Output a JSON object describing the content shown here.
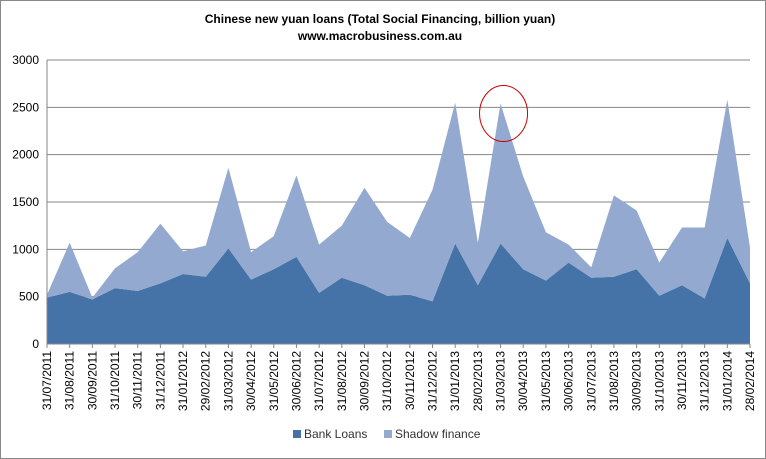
{
  "chart_data": {
    "type": "area",
    "stacked": true,
    "title": "Chinese new yuan loans (Total Social Financing, billion yuan)",
    "subtitle": "www.macrobusiness.com.au",
    "xlabel": "",
    "ylabel": "",
    "ylim": [
      0,
      3000
    ],
    "yticks": [
      0,
      500,
      1000,
      1500,
      2000,
      2500,
      3000
    ],
    "grid": true,
    "legend_position": "bottom",
    "categories": [
      "31/07/2011",
      "31/08/2011",
      "30/09/2011",
      "31/10/2011",
      "30/11/2011",
      "31/12/2011",
      "31/01/2012",
      "29/02/2012",
      "31/03/2012",
      "30/04/2012",
      "31/05/2012",
      "30/06/2012",
      "31/07/2012",
      "31/08/2012",
      "30/09/2012",
      "31/10/2012",
      "30/11/2012",
      "31/12/2012",
      "31/01/2013",
      "28/02/2013",
      "31/03/2013",
      "30/04/2013",
      "31/05/2013",
      "30/06/2013",
      "31/07/2013",
      "31/08/2013",
      "30/09/2013",
      "31/10/2013",
      "30/11/2013",
      "31/12/2013",
      "31/01/2014",
      "28/02/2014"
    ],
    "series": [
      {
        "name": "Bank Loans",
        "color": "#4572a7",
        "values": [
          490,
          550,
          470,
          590,
          560,
          640,
          740,
          710,
          1010,
          680,
          790,
          920,
          540,
          700,
          620,
          510,
          520,
          450,
          1060,
          620,
          1060,
          790,
          670,
          860,
          700,
          710,
          790,
          510,
          620,
          480,
          1120,
          640
        ]
      },
      {
        "name": "Shadow finance",
        "color": "#93a9cf",
        "values": [
          30,
          520,
          20,
          210,
          410,
          630,
          240,
          330,
          850,
          290,
          350,
          860,
          510,
          550,
          1030,
          780,
          600,
          1180,
          1490,
          450,
          1480,
          980,
          510,
          190,
          110,
          860,
          620,
          350,
          610,
          750,
          1460,
          380
        ]
      }
    ],
    "annotations": [
      {
        "type": "ellipse",
        "category": "31/03/2013",
        "color": "#cc0000"
      }
    ]
  }
}
